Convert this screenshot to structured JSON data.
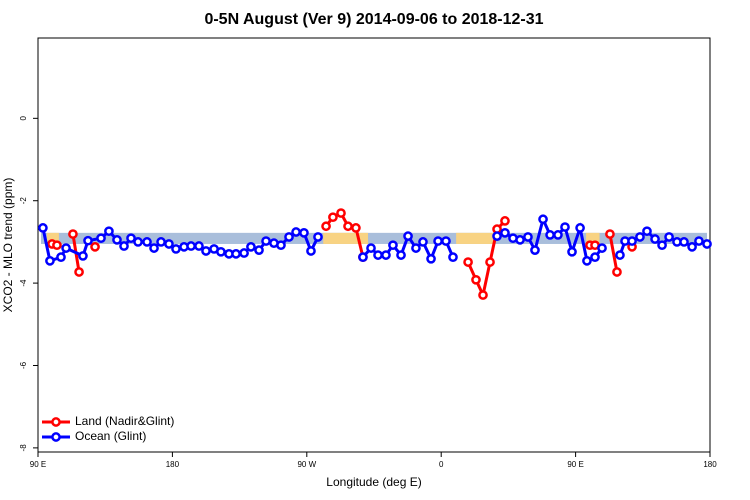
{
  "chart_data": {
    "type": "line",
    "title": "0-5N August (Ver 9)   2014-09-06 to 2018-12-31",
    "x_label": "Longitude (deg E)",
    "y_label": "XCO2 - MLO trend (ppm)",
    "xlim": [
      90,
      540
    ],
    "xticks": [
      {
        "value": 90,
        "label": "90 E"
      },
      {
        "value": 180,
        "label": "180"
      },
      {
        "value": 270,
        "label": "90 W"
      },
      {
        "value": 360,
        "label": "0"
      },
      {
        "value": 450,
        "label": "90 E"
      },
      {
        "value": 540,
        "label": "180"
      }
    ],
    "ylim": [
      -8.1,
      1.95
    ],
    "yticks": [
      -8,
      -6,
      -4,
      -2,
      0
    ],
    "legend": "bottom-left",
    "band": {
      "range": [
        -3.05,
        -2.78
      ],
      "color": "#a9bedb",
      "land_color": "#f8d383",
      "land_ranges": [
        [
          96,
          104
        ],
        [
          281,
          311
        ],
        [
          370,
          395
        ],
        [
          457,
          466
        ]
      ]
    },
    "series": [
      {
        "name": "Land (Nadir&Glint)",
        "color": "#ff0000",
        "x": [
          99.4,
          102.7,
          null,
          113.4,
          117.5,
          null,
          128.2,
          null,
          282.9,
          287.5,
          292.9,
          297.6,
          302.9,
          307.6,
          null,
          378,
          383.3,
          388,
          392.7,
          397.4,
          402.7,
          null,
          459.6,
          463,
          null,
          473,
          477.7,
          null,
          487.8
        ],
        "values": [
          -3.05,
          -3.08,
          null,
          -2.81,
          -3.73,
          null,
          -3.12,
          null,
          -2.62,
          -2.4,
          -2.3,
          -2.62,
          -2.66,
          -3.37,
          null,
          -3.49,
          -3.92,
          -4.29,
          -3.49,
          -2.69,
          -2.49,
          null,
          -3.08,
          -3.08,
          null,
          -2.81,
          -3.73,
          null,
          -3.12
        ]
      },
      {
        "name": "Ocean (Glint)",
        "color": "#0000ff",
        "x": [
          93.3,
          98,
          105.4,
          108.8,
          120.1,
          123.5,
          132.2,
          137.5,
          142.9,
          147.6,
          152.3,
          157,
          163,
          167.7,
          172.4,
          177.7,
          182.4,
          187.8,
          192.5,
          197.8,
          202.5,
          207.9,
          212.5,
          217.9,
          222.6,
          228,
          232.6,
          238,
          242.7,
          248,
          252.7,
          258.1,
          262.8,
          268.1,
          272.8,
          277.5,
          null,
          307.6,
          313,
          317.7,
          323,
          327.7,
          333.1,
          337.8,
          343.1,
          347.8,
          353.2,
          357.9,
          363.2,
          367.9,
          null,
          397.4,
          402.7,
          408.1,
          412.8,
          418.1,
          422.8,
          428.2,
          432.9,
          438.2,
          442.9,
          447.6,
          453,
          457.6,
          463,
          467.7,
          null,
          479.7,
          483.1,
          487.8,
          493.1,
          497.8,
          503.2,
          507.9,
          512.6,
          517.9,
          522.6,
          528,
          532.6,
          538
        ],
        "values": [
          -2.66,
          -3.46,
          -3.37,
          -3.15,
          -3.34,
          -2.97,
          -2.91,
          -2.74,
          -2.95,
          -3.1,
          -2.91,
          -3.0,
          -3.0,
          -3.15,
          -3.0,
          -3.05,
          -3.17,
          -3.12,
          -3.1,
          -3.1,
          -3.22,
          -3.17,
          -3.24,
          -3.29,
          -3.29,
          -3.27,
          -3.12,
          -3.2,
          -2.98,
          -3.03,
          -3.08,
          -2.88,
          -2.76,
          -2.78,
          -3.22,
          -2.88,
          null,
          -3.37,
          -3.15,
          -3.32,
          -3.32,
          -3.08,
          -3.32,
          -2.86,
          -3.15,
          -3.0,
          -3.41,
          -2.98,
          -2.98,
          -3.37,
          null,
          -2.86,
          -2.78,
          -2.91,
          -2.95,
          -2.88,
          -3.2,
          -2.45,
          -2.83,
          -2.83,
          -2.64,
          -3.24,
          -2.66,
          -3.46,
          -3.37,
          -3.15,
          null,
          -3.32,
          -2.98,
          -2.98,
          -2.88,
          -2.74,
          -2.93,
          -3.08,
          -2.88,
          -3.0,
          -3.0,
          -3.12,
          -2.98,
          -3.05
        ]
      }
    ]
  }
}
